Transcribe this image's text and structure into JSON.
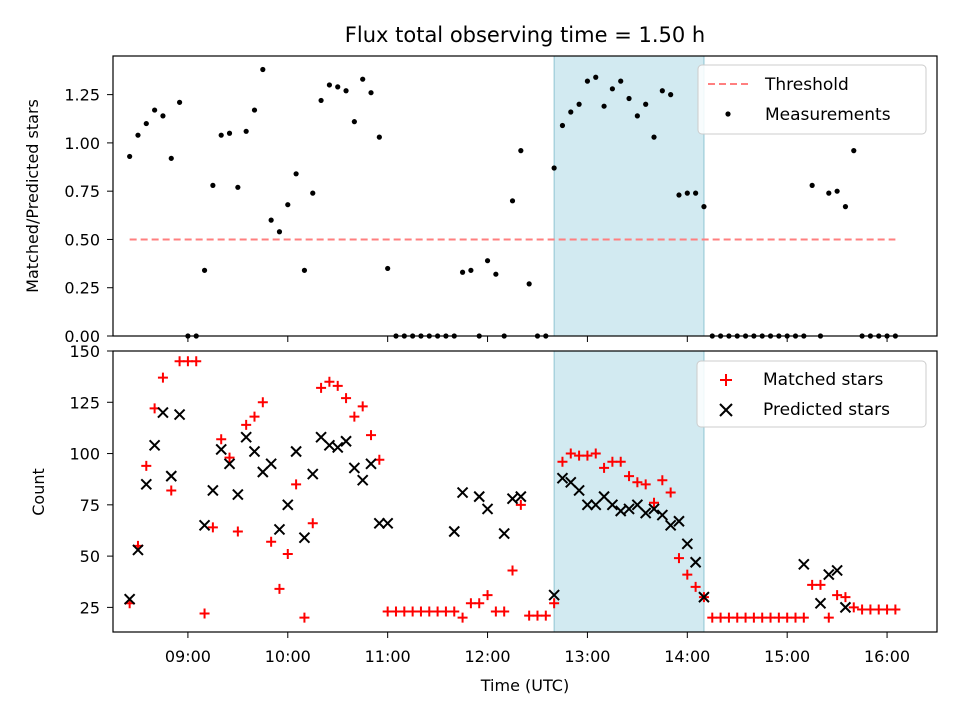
{
  "title": "Flux total observing time = 1.50 h",
  "colors": {
    "threshold": "#ff7f7f",
    "matched": "#ff0000",
    "predicted": "#000000",
    "highlight": "#add8e6"
  },
  "chart_data": [
    {
      "type": "scatter",
      "ylabel": "Matched/Predicted stars",
      "ylim": [
        0,
        1.45
      ],
      "yticks": [
        "0.00",
        "0.25",
        "0.50",
        "0.75",
        "1.00",
        "1.25"
      ],
      "xlim": [
        "08:15",
        "16:30"
      ],
      "highlight": [
        "12:40",
        "14:10"
      ],
      "threshold": {
        "name": "Threshold",
        "value": 0.5,
        "from": "08:25",
        "to": "16:05"
      },
      "series": [
        {
          "name": "Measurements",
          "x": [
            "08:25",
            "08:30",
            "08:35",
            "08:40",
            "08:45",
            "08:50",
            "08:55",
            "09:00",
            "09:05",
            "09:10",
            "09:15",
            "09:20",
            "09:25",
            "09:30",
            "09:35",
            "09:40",
            "09:45",
            "09:50",
            "09:55",
            "10:00",
            "10:05",
            "10:10",
            "10:15",
            "10:20",
            "10:25",
            "10:30",
            "10:35",
            "10:40",
            "10:45",
            "10:50",
            "10:55",
            "11:00",
            "11:05",
            "11:10",
            "11:15",
            "11:20",
            "11:25",
            "11:30",
            "11:35",
            "11:40",
            "11:45",
            "11:50",
            "11:55",
            "12:00",
            "12:05",
            "12:10",
            "12:15",
            "12:20",
            "12:25",
            "12:30",
            "12:35",
            "12:40",
            "12:45",
            "12:50",
            "12:55",
            "13:00",
            "13:05",
            "13:10",
            "13:15",
            "13:20",
            "13:25",
            "13:30",
            "13:35",
            "13:40",
            "13:45",
            "13:50",
            "13:55",
            "14:00",
            "14:05",
            "14:10",
            "14:15",
            "14:20",
            "14:25",
            "14:30",
            "14:35",
            "14:40",
            "14:45",
            "14:50",
            "14:55",
            "15:00",
            "15:05",
            "15:10",
            "15:15",
            "15:20",
            "15:25",
            "15:30",
            "15:35",
            "15:40",
            "15:45",
            "15:50",
            "15:55",
            "16:00",
            "16:05"
          ],
          "y": [
            0.93,
            1.04,
            1.1,
            1.17,
            1.14,
            0.92,
            1.21,
            0.0,
            0.0,
            0.34,
            0.78,
            1.04,
            1.05,
            0.77,
            1.06,
            1.17,
            1.38,
            0.6,
            0.54,
            0.68,
            0.84,
            0.34,
            0.74,
            1.22,
            1.3,
            1.29,
            1.27,
            1.11,
            1.33,
            1.26,
            1.03,
            0.35,
            0.0,
            0.0,
            0.0,
            0.0,
            0.0,
            0.0,
            0.0,
            0.0,
            0.33,
            0.34,
            0.0,
            0.39,
            0.32,
            0.0,
            0.7,
            0.96,
            0.27,
            0.0,
            0.0,
            0.87,
            1.09,
            1.16,
            1.2,
            1.32,
            1.34,
            1.19,
            1.28,
            1.32,
            1.23,
            1.14,
            1.2,
            1.03,
            1.27,
            1.25,
            0.73,
            0.74,
            0.74,
            0.67,
            0.0,
            0.0,
            0.0,
            0.0,
            0.0,
            0.0,
            0.0,
            0.0,
            0.0,
            0.0,
            0.0,
            0.0,
            0.78,
            0.0,
            0.74,
            0.75,
            0.67,
            0.96,
            0.0,
            0.0,
            0.0,
            0.0,
            0.0
          ]
        }
      ],
      "legend": "upper right"
    },
    {
      "type": "scatter",
      "xlabel": "Time (UTC)",
      "ylabel": "Count",
      "ylim": [
        13,
        150
      ],
      "yticks": [
        "25",
        "50",
        "75",
        "100",
        "125",
        "150"
      ],
      "xticks": [
        "09:00",
        "10:00",
        "11:00",
        "12:00",
        "13:00",
        "14:00",
        "15:00",
        "16:00"
      ],
      "xlim": [
        "08:15",
        "16:30"
      ],
      "highlight": [
        "12:40",
        "14:10"
      ],
      "series": [
        {
          "name": "Matched stars",
          "x": [
            "08:25",
            "08:30",
            "08:35",
            "08:40",
            "08:45",
            "08:50",
            "08:55",
            "09:00",
            "09:05",
            "09:10",
            "09:15",
            "09:20",
            "09:25",
            "09:30",
            "09:35",
            "09:40",
            "09:45",
            "09:50",
            "09:55",
            "10:00",
            "10:05",
            "10:10",
            "10:15",
            "10:20",
            "10:25",
            "10:30",
            "10:35",
            "10:40",
            "10:45",
            "10:50",
            "10:55",
            "11:00",
            "11:05",
            "11:10",
            "11:15",
            "11:20",
            "11:25",
            "11:30",
            "11:35",
            "11:40",
            "11:45",
            "11:50",
            "11:55",
            "12:00",
            "12:05",
            "12:10",
            "12:15",
            "12:20",
            "12:25",
            "12:30",
            "12:35",
            "12:40",
            "12:45",
            "12:50",
            "12:55",
            "13:00",
            "13:05",
            "13:10",
            "13:15",
            "13:20",
            "13:25",
            "13:30",
            "13:35",
            "13:40",
            "13:45",
            "13:50",
            "13:55",
            "14:00",
            "14:05",
            "14:10",
            "14:15",
            "14:20",
            "14:25",
            "14:30",
            "14:35",
            "14:40",
            "14:45",
            "14:50",
            "14:55",
            "15:00",
            "15:05",
            "15:10",
            "15:15",
            "15:20",
            "15:25",
            "15:30",
            "15:35",
            "15:40",
            "15:45",
            "15:50",
            "15:55",
            "16:00",
            "16:05"
          ],
          "y": [
            27,
            55,
            94,
            122,
            137,
            82,
            145,
            145,
            145,
            22,
            64,
            107,
            98,
            62,
            114,
            118,
            125,
            57,
            34,
            51,
            85,
            20,
            66,
            132,
            135,
            133,
            127,
            118,
            123,
            109,
            97,
            23,
            23,
            23,
            23,
            23,
            23,
            23,
            23,
            23,
            20,
            27,
            27,
            31,
            23,
            23,
            43,
            75,
            21,
            21,
            21,
            27,
            96,
            100,
            99,
            99,
            100,
            93,
            96,
            96,
            89,
            86,
            85,
            76,
            87,
            81,
            49,
            41,
            35,
            30,
            20,
            20,
            20,
            20,
            20,
            20,
            20,
            20,
            20,
            20,
            20,
            20,
            36,
            36,
            20,
            31,
            30,
            25,
            24,
            24,
            24,
            24,
            24
          ]
        },
        {
          "name": "Predicted stars",
          "x": [
            "08:25",
            "08:30",
            "08:35",
            "08:40",
            "08:45",
            "08:50",
            "08:55",
            "09:10",
            "09:15",
            "09:20",
            "09:25",
            "09:30",
            "09:35",
            "09:40",
            "09:45",
            "09:50",
            "09:55",
            "10:00",
            "10:05",
            "10:10",
            "10:15",
            "10:20",
            "10:25",
            "10:30",
            "10:35",
            "10:40",
            "10:45",
            "10:50",
            "10:55",
            "11:00",
            "11:40",
            "11:45",
            "11:55",
            "12:00",
            "12:10",
            "12:15",
            "12:20",
            "12:40",
            "12:45",
            "12:50",
            "12:55",
            "13:00",
            "13:05",
            "13:10",
            "13:15",
            "13:20",
            "13:25",
            "13:30",
            "13:35",
            "13:40",
            "13:45",
            "13:50",
            "13:55",
            "14:00",
            "14:05",
            "14:10",
            "15:10",
            "15:20",
            "15:25",
            "15:30",
            "15:35"
          ],
          "y": [
            29,
            53,
            85,
            104,
            120,
            89,
            119,
            65,
            82,
            102,
            95,
            80,
            108,
            101,
            91,
            95,
            63,
            75,
            101,
            59,
            90,
            108,
            104,
            103,
            106,
            93,
            87,
            95,
            66,
            66,
            62,
            81,
            79,
            73,
            61,
            78,
            79,
            31,
            88,
            86,
            82,
            75,
            75,
            79,
            75,
            72,
            73,
            75,
            71,
            73,
            70,
            65,
            67,
            56,
            47,
            30,
            46,
            27,
            41,
            43,
            25
          ]
        }
      ],
      "legend": "upper right"
    }
  ]
}
